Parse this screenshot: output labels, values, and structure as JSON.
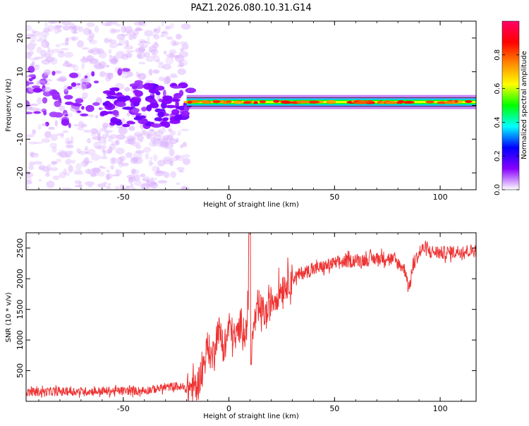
{
  "title": "PAZ1.2026.080.10.31.G14",
  "chart_data": [
    {
      "type": "heatmap",
      "xlabel": "Height of straight line (km)",
      "ylabel": "Frequency (Hz)",
      "xlim": [
        -96,
        117
      ],
      "ylim": [
        -25,
        25
      ],
      "xticks": [
        -50,
        0,
        50,
        100
      ],
      "xtick_labels": [
        "-50",
        "0",
        "50",
        "100"
      ],
      "yticks": [
        -20,
        -10,
        0,
        10,
        20
      ],
      "ytick_labels": [
        "-20",
        "-10",
        "0",
        "10",
        "20"
      ],
      "colorbar": {
        "label": "Normalized spectral amplitude",
        "range": [
          0,
          1
        ],
        "ticks": [
          0,
          0.2,
          0.4,
          0.6,
          0.8
        ],
        "tick_labels": [
          "0.0",
          "0.2",
          "0.4",
          "0.6",
          "0.8"
        ],
        "colors": [
          "#ffffff",
          "#8800ff",
          "#0000ff",
          "#00ffff",
          "#00ff00",
          "#ffff00",
          "#ff8800",
          "#ff0000",
          "#ff0066"
        ]
      },
      "features": {
        "noise_region_x": [
          -96,
          -20
        ],
        "noise_amplitude": [
          0.05,
          0.3
        ],
        "signal_band_x": [
          -20,
          117
        ],
        "signal_freq_hz": 1,
        "signal_amplitude": 0.6
      }
    },
    {
      "type": "line",
      "xlabel": "Height of straight line (km)",
      "ylabel": "SNR (10 * v/v)",
      "xlim": [
        -96,
        117
      ],
      "ylim": [
        0,
        2750
      ],
      "xticks": [
        -50,
        0,
        50,
        100
      ],
      "xtick_labels": [
        "-50",
        "0",
        "50",
        "100"
      ],
      "yticks": [
        500,
        1000,
        1500,
        2000,
        2500
      ],
      "ytick_labels": [
        "500",
        "1000",
        "1500",
        "2000",
        "2500"
      ],
      "color": "#ee3333",
      "x": [
        -96,
        -80,
        -60,
        -40,
        -25,
        -20,
        -18,
        -15,
        -12,
        -10,
        -8,
        -5,
        -2,
        0,
        3,
        6,
        8,
        9,
        10,
        11,
        12,
        15,
        18,
        20,
        22,
        25,
        28,
        30,
        35,
        40,
        45,
        50,
        55,
        60,
        65,
        70,
        75,
        78,
        80,
        82,
        84,
        85,
        86,
        88,
        90,
        92,
        95,
        100,
        105,
        110,
        117
      ],
      "y": [
        150,
        160,
        165,
        175,
        250,
        200,
        230,
        250,
        600,
        900,
        700,
        1200,
        800,
        1250,
        1000,
        1300,
        1100,
        1450,
        1550,
        900,
        1300,
        1500,
        1400,
        1650,
        1700,
        1850,
        1950,
        2000,
        2100,
        2150,
        2200,
        2250,
        2280,
        2300,
        2310,
        2330,
        2350,
        2300,
        2250,
        2200,
        2100,
        1800,
        2000,
        2300,
        2400,
        2500,
        2450,
        2420,
        2430,
        2450,
        2460
      ]
    }
  ]
}
